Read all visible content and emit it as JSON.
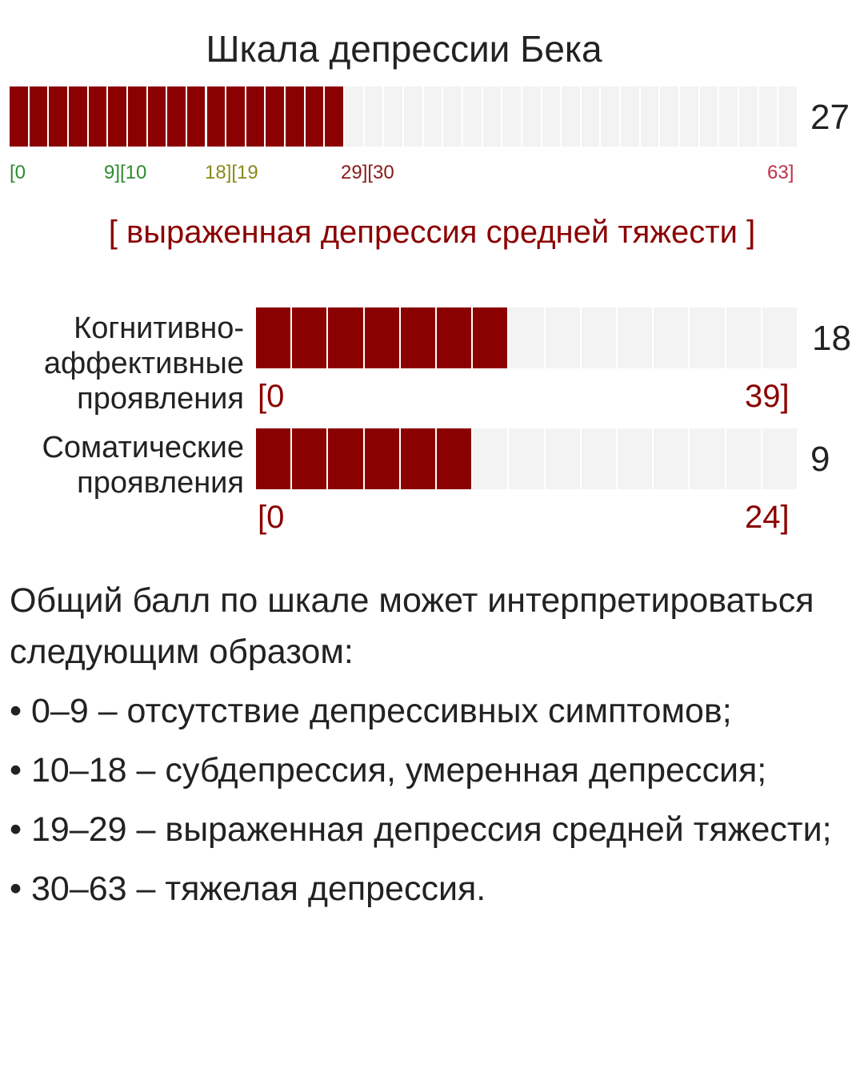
{
  "title": "Шкала депрессии Бека",
  "main_scale": {
    "score": "27",
    "value": 27,
    "max": 63,
    "segments": 40,
    "filled_segments": 17,
    "ticks": [
      {
        "label": "[0",
        "color": "#2e8b2e"
      },
      {
        "label": "9][10",
        "color": "#2e8b2e"
      },
      {
        "label": "18][19",
        "color": "#8a8a1a"
      },
      {
        "label": "29][30",
        "color": "#8b1a1a"
      },
      {
        "label": "63]",
        "color": "#c0304a"
      }
    ]
  },
  "result": "[ выраженная депрессия средней тяжести ]",
  "subscales": [
    {
      "label_lines": [
        "Когнитивно-",
        "аффективные",
        "проявления"
      ],
      "score": "18",
      "value": 18,
      "max": 39,
      "segments": 15,
      "filled_segments": 7,
      "range_start": "[0",
      "range_end": "39]"
    },
    {
      "label_lines": [
        "Соматические",
        "проявления"
      ],
      "score": "9",
      "value": 9,
      "max": 24,
      "segments": 15,
      "filled_segments": 6,
      "range_start": "[0",
      "range_end": "24]"
    }
  ],
  "description": {
    "intro": "Общий балл по шкале может интерпретироваться следующим образом:",
    "items": [
      "• 0–9 – отсутствие депрессивных симптомов;",
      "• 10–18 – субдепрессия, умеренная депрессия;",
      "• 19–29 – выраженная депрессия средней тяжести;",
      "• 30–63 – тяжелая депрессия."
    ]
  },
  "colors": {
    "accent": "#8b0000",
    "bar_bg": "#f3f3f3"
  }
}
